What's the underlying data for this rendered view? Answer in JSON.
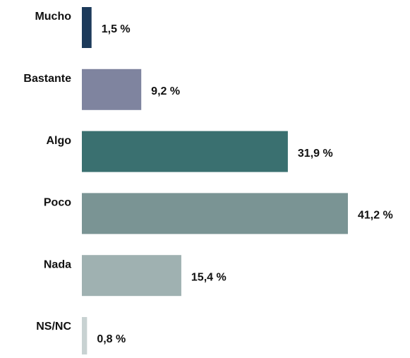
{
  "chart_data": {
    "type": "bar",
    "orientation": "horizontal",
    "categories": [
      "Mucho",
      "Bastante",
      "Algo",
      "Poco",
      "Nada",
      "NS/NC"
    ],
    "values": [
      1.5,
      9.2,
      31.9,
      41.2,
      15.4,
      0.8
    ],
    "value_labels": [
      "1,5 %",
      "9,2 %",
      "31,9 %",
      "41,2 %",
      "15,4 %",
      "0,8 %"
    ],
    "colors": [
      "#1c3a5a",
      "#7f849f",
      "#3a7070",
      "#7a9494",
      "#9fb1b1",
      "#c8d2d2"
    ]
  }
}
